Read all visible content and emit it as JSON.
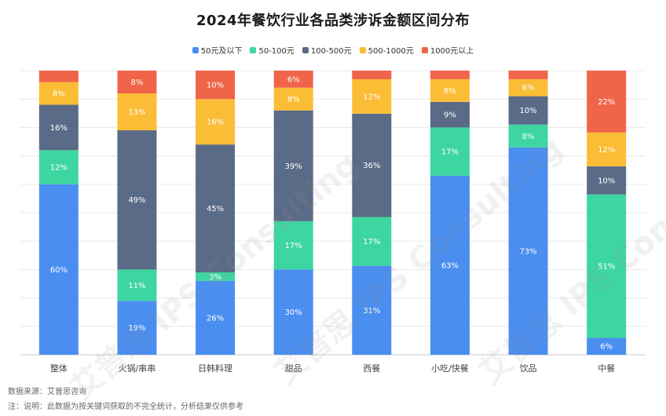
{
  "chart_data": {
    "type": "stacked-bar-100",
    "title": "2024年餐饮行业各品类涉诉金额区间分布",
    "categories": [
      "整体",
      "火锅/串串",
      "日韩料理",
      "甜品",
      "西餐",
      "小吃/快餐",
      "饮品",
      "中餐"
    ],
    "ylim": [
      0,
      100
    ],
    "grid": true,
    "legend_position": "top",
    "series": [
      {
        "name": "50元及以下",
        "color": "#4a8ef0",
        "values": [
          60,
          19,
          26,
          30,
          31,
          63,
          73,
          6
        ]
      },
      {
        "name": "50-100元",
        "color": "#3ed6a0",
        "values": [
          12,
          11,
          3,
          17,
          17,
          17,
          8,
          51
        ]
      },
      {
        "name": "100-500元",
        "color": "#5a6b87",
        "values": [
          16,
          49,
          45,
          39,
          36,
          9,
          10,
          10
        ]
      },
      {
        "name": "500-1000元",
        "color": "#fbbd35",
        "values": [
          8,
          13,
          16,
          8,
          12,
          8,
          6,
          12
        ]
      },
      {
        "name": "1000元以上",
        "color": "#f0644a",
        "values": [
          4,
          8,
          10,
          6,
          3,
          3,
          3,
          22
        ]
      }
    ],
    "data_labels": [
      [
        "60%",
        "19%",
        "26%",
        "30%",
        "31%",
        "63%",
        "73%",
        "6%"
      ],
      [
        "12%",
        "11%",
        "3%",
        "17%",
        "17%",
        "17%",
        "8%",
        "51%"
      ],
      [
        "16%",
        "49%",
        "45%",
        "39%",
        "36%",
        "9%",
        "10%",
        "10%"
      ],
      [
        "8%",
        "13%",
        "16%",
        "8%",
        "12%",
        "8%",
        "6%",
        "12%"
      ],
      [
        "",
        "8%",
        "10%",
        "6%",
        "",
        "",
        "",
        "22%"
      ]
    ]
  },
  "footer": {
    "source": "数据来源：艾普思咨询",
    "note": "注：说明：此数据为按关键词获取的不完全统计，分析结果仅供参考"
  },
  "watermark": "艾普思 IPS Consulting"
}
